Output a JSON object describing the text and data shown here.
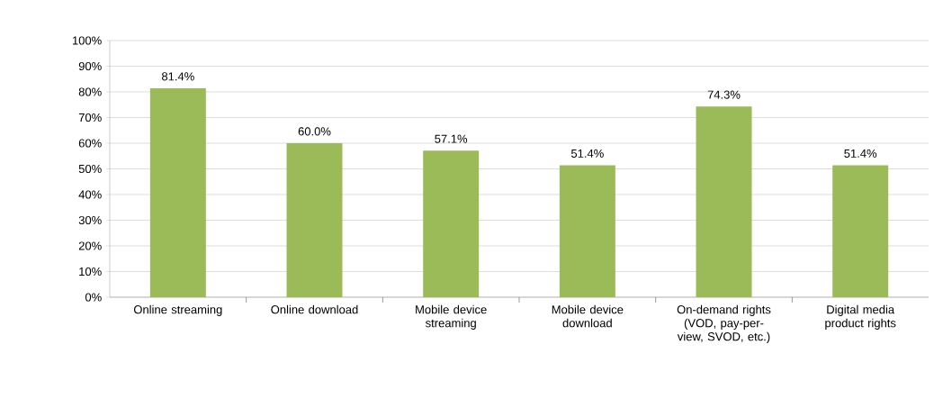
{
  "chart_data": {
    "type": "bar",
    "categories": [
      "Online streaming",
      "Online download",
      "Mobile device streaming",
      "Mobile device download",
      "On-demand rights (VOD, pay-per-view, SVOD, etc.)",
      "Digital media product rights"
    ],
    "values": [
      81.4,
      60.0,
      57.1,
      51.4,
      74.3,
      51.4
    ],
    "value_labels": [
      "81.4%",
      "60.0%",
      "57.1%",
      "51.4%",
      "74.3%",
      "51.4%"
    ],
    "color": "#9bbb59",
    "ylim": [
      0,
      100
    ],
    "yticks": [
      {
        "value": 0,
        "label": "0%"
      },
      {
        "value": 10,
        "label": "10%"
      },
      {
        "value": 20,
        "label": "20%"
      },
      {
        "value": 30,
        "label": "30%"
      },
      {
        "value": 40,
        "label": "40%"
      },
      {
        "value": 50,
        "label": "50%"
      },
      {
        "value": 60,
        "label": "60%"
      },
      {
        "value": 70,
        "label": "70%"
      },
      {
        "value": 80,
        "label": "80%"
      },
      {
        "value": 90,
        "label": "90%"
      },
      {
        "value": 100,
        "label": "100%"
      }
    ],
    "grid": "y"
  }
}
